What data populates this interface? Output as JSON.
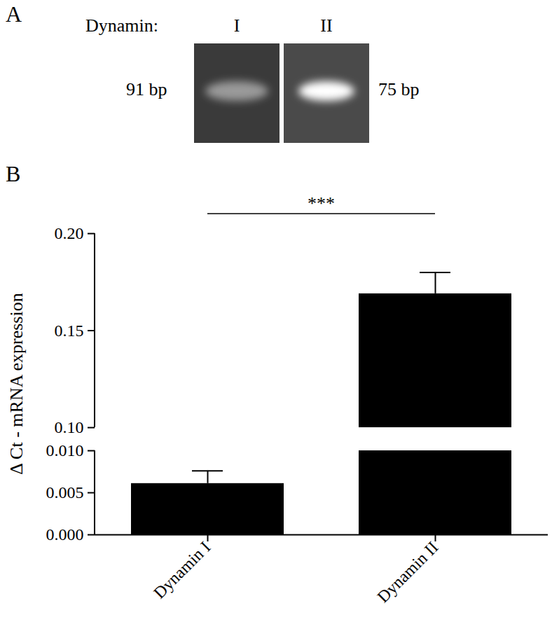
{
  "panel_a": {
    "label": "A",
    "row_label": "Dynamin:",
    "lanes": [
      {
        "name": "I",
        "size": "91 bp"
      },
      {
        "name": "II",
        "size": "75 bp"
      }
    ]
  },
  "chart_data": {
    "type": "bar",
    "label": "B",
    "y_label": "Δ Ct - mRNA expression",
    "categories": [
      "Dynamin I",
      "Dynamin II"
    ],
    "values": [
      0.0061,
      0.169
    ],
    "errors": [
      0.0015,
      0.011
    ],
    "color": "#000000",
    "annotation": "***",
    "y_segments": [
      {
        "ylim": [
          0.1,
          0.2
        ],
        "yticks": [
          {
            "value": 0.1,
            "label": "0.10"
          },
          {
            "value": 0.15,
            "label": "0.15"
          },
          {
            "value": 0.2,
            "label": "0.20"
          }
        ]
      },
      {
        "ylim": [
          0,
          0.01
        ],
        "yticks": [
          {
            "value": 0,
            "label": "0.000"
          },
          {
            "value": 0.005,
            "label": "0.005"
          },
          {
            "value": 0.01,
            "label": "0.010"
          }
        ]
      }
    ]
  }
}
